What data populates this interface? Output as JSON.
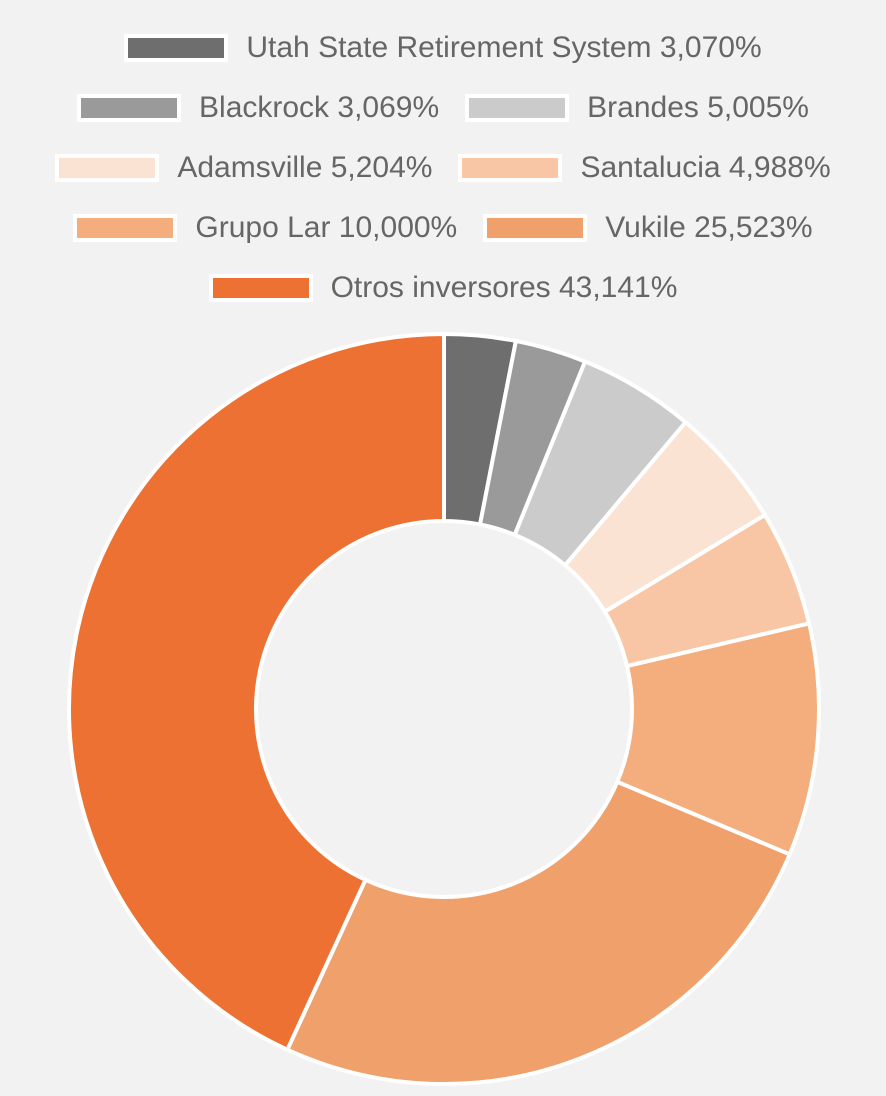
{
  "chart_data": {
    "type": "pie",
    "variant": "doughnut",
    "legend_position": "top",
    "categories": [
      "Utah State Retirement System",
      "Blackrock",
      "Brandes",
      "Adamsville",
      "Santalucia",
      "Grupo Lar",
      "Vukile",
      "Otros inversores"
    ],
    "values": [
      3.07,
      3.069,
      5.005,
      5.204,
      4.988,
      10.0,
      25.523,
      43.141
    ],
    "legend_labels": [
      "Utah State Retirement System 3,070%",
      "Blackrock 3,069%",
      "Brandes 5,005%",
      "Adamsville 5,204%",
      "Santalucia 4,988%",
      "Grupo Lar 10,000%",
      "Vukile 25,523%",
      "Otros inversores 43,141%"
    ],
    "colors": [
      "#6e6e6e",
      "#9a9a9a",
      "#cbcbcb",
      "#fbe3d4",
      "#f8c6a5",
      "#f4ad7d",
      "#efa06b",
      "#ed7133"
    ]
  }
}
